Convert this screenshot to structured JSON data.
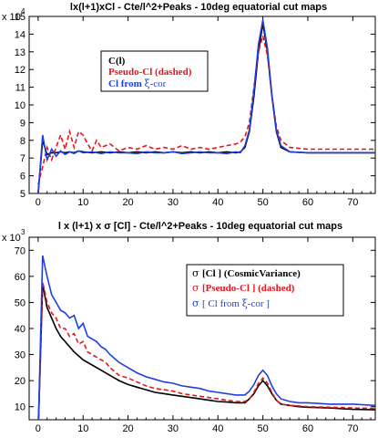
{
  "chart_data": [
    {
      "type": "line",
      "title": "lx(l+1)xCl  - Cte/l^2+Peaks - 10deg equatorial cut maps",
      "y_scale_label": "x 10",
      "y_scale_exp": "4",
      "xlim": [
        -2,
        75
      ],
      "ylim": [
        5,
        15
      ],
      "xticks": [
        0,
        10,
        20,
        30,
        40,
        50,
        60,
        70
      ],
      "yticks": [
        5,
        6,
        7,
        8,
        9,
        10,
        11,
        12,
        13,
        14,
        15
      ],
      "legend_position": "upper-left",
      "series": [
        {
          "name": "C(l)",
          "color": "#000000",
          "dash": "",
          "x": [
            0,
            1,
            2,
            3,
            4,
            5,
            6,
            7,
            8,
            9,
            10,
            12,
            14,
            16,
            18,
            20,
            22,
            24,
            26,
            28,
            30,
            32,
            34,
            36,
            38,
            40,
            42,
            44,
            45,
            46,
            47,
            48,
            49,
            50,
            51,
            52,
            53,
            54,
            56,
            60,
            65,
            70,
            75
          ],
          "y": [
            5.0,
            8.0,
            7.2,
            7.3,
            7.3,
            7.35,
            7.3,
            7.35,
            7.3,
            7.4,
            7.35,
            7.3,
            7.35,
            7.3,
            7.35,
            7.3,
            7.35,
            7.3,
            7.35,
            7.3,
            7.35,
            7.3,
            7.35,
            7.3,
            7.35,
            7.3,
            7.35,
            7.3,
            7.35,
            7.6,
            8.5,
            10.5,
            13.0,
            14.6,
            13.0,
            10.5,
            8.5,
            7.6,
            7.35,
            7.3,
            7.3,
            7.3,
            7.3
          ]
        },
        {
          "name": "Pseudo-Cl (dashed)",
          "color": "#e8141c",
          "dash": "5,3",
          "x": [
            0,
            1,
            2,
            3,
            4,
            5,
            6,
            7,
            8,
            9,
            10,
            11,
            12,
            13,
            14,
            16,
            18,
            20,
            22,
            24,
            26,
            28,
            30,
            32,
            34,
            36,
            38,
            40,
            42,
            44,
            45,
            46,
            47,
            48,
            49,
            50,
            51,
            52,
            53,
            54,
            56,
            60,
            65,
            70,
            75
          ],
          "y": [
            5.5,
            6.5,
            7.6,
            6.9,
            7.6,
            8.3,
            7.5,
            8.5,
            7.6,
            8.5,
            8.3,
            7.8,
            7.4,
            8.0,
            7.6,
            7.8,
            7.4,
            7.6,
            7.5,
            7.7,
            7.5,
            7.6,
            7.5,
            7.7,
            7.5,
            7.6,
            7.5,
            7.6,
            7.7,
            7.8,
            7.9,
            8.2,
            9.0,
            11.0,
            13.0,
            13.9,
            12.8,
            10.5,
            8.8,
            8.0,
            7.6,
            7.5,
            7.5,
            7.5,
            7.5
          ]
        },
        {
          "name": "Cl from ξ-cor",
          "color": "#1f3fe0",
          "dash": "",
          "x": [
            0,
            1,
            2,
            3,
            4,
            5,
            6,
            7,
            8,
            9,
            10,
            12,
            14,
            16,
            18,
            20,
            22,
            24,
            26,
            28,
            30,
            32,
            34,
            36,
            38,
            40,
            42,
            44,
            45,
            46,
            47,
            48,
            49,
            50,
            51,
            52,
            53,
            54,
            56,
            60,
            65,
            70,
            75
          ],
          "y": [
            5.0,
            8.3,
            6.9,
            7.5,
            7.1,
            7.4,
            7.2,
            7.35,
            7.25,
            7.4,
            7.3,
            7.35,
            7.25,
            7.35,
            7.3,
            7.3,
            7.25,
            7.35,
            7.3,
            7.3,
            7.35,
            7.25,
            7.3,
            7.35,
            7.3,
            7.3,
            7.25,
            7.35,
            7.3,
            7.7,
            8.6,
            10.8,
            13.4,
            14.8,
            13.2,
            10.6,
            8.6,
            7.7,
            7.35,
            7.3,
            7.3,
            7.3,
            7.3
          ]
        }
      ]
    },
    {
      "type": "line",
      "title": "l x (l+1) x σ [Cl]  - Cte/l^2+Peaks - 10deg equatorial cut maps",
      "y_scale_label": "x 10",
      "y_scale_exp": "3",
      "xlim": [
        -2,
        75
      ],
      "ylim": [
        5,
        75
      ],
      "xticks": [
        0,
        10,
        20,
        30,
        40,
        50,
        60,
        70
      ],
      "yticks": [
        10,
        20,
        30,
        40,
        50,
        60,
        70
      ],
      "legend_position": "upper-right",
      "series": [
        {
          "name": "σ [Cl ] (CosmicVariance)",
          "color": "#000000",
          "dash": "",
          "x": [
            0,
            1,
            2,
            3,
            4,
            5,
            6,
            7,
            8,
            9,
            10,
            12,
            14,
            16,
            18,
            20,
            22,
            24,
            26,
            28,
            30,
            32,
            34,
            36,
            38,
            40,
            42,
            44,
            46,
            47,
            48,
            49,
            50,
            51,
            52,
            53,
            54,
            56,
            58,
            60,
            65,
            70,
            75
          ],
          "y": [
            0,
            57,
            48,
            44,
            40,
            37,
            35,
            33,
            31,
            29.5,
            28,
            26,
            24,
            22,
            20,
            18.5,
            17.5,
            16.5,
            15.5,
            15,
            14.5,
            14,
            13.5,
            13,
            12.5,
            12,
            11.8,
            11.5,
            11.5,
            13,
            15,
            18,
            20,
            18,
            15,
            12.5,
            11,
            10.5,
            10,
            9.8,
            9.5,
            9,
            8.8
          ]
        },
        {
          "name": "σ [Pseudo-Cl ] (dashed)",
          "color": "#e8141c",
          "dash": "5,3",
          "x": [
            0,
            1,
            2,
            3,
            4,
            5,
            6,
            7,
            8,
            9,
            10,
            11,
            12,
            13,
            14,
            15,
            16,
            18,
            20,
            22,
            24,
            26,
            28,
            30,
            32,
            34,
            36,
            38,
            40,
            42,
            44,
            46,
            47,
            48,
            49,
            50,
            51,
            52,
            53,
            54,
            56,
            58,
            60,
            65,
            70,
            75
          ],
          "y": [
            0,
            58,
            50,
            46,
            44,
            40,
            40,
            37,
            38,
            34,
            35,
            31,
            30,
            29,
            28,
            27,
            25,
            22,
            21,
            19.5,
            18,
            17,
            16.5,
            16,
            15,
            14.5,
            14,
            13.5,
            13,
            12.5,
            12,
            12,
            13,
            15.5,
            19,
            21,
            19,
            15.5,
            12.5,
            11,
            10.5,
            10.3,
            10,
            9.8,
            9.5,
            9.3
          ]
        },
        {
          "name": "σ [ Cl from ξ-cor ]",
          "color": "#1f3fe0",
          "dash": "",
          "x": [
            0,
            1,
            2,
            3,
            4,
            5,
            6,
            7,
            8,
            9,
            10,
            11,
            12,
            13,
            14,
            15,
            16,
            18,
            20,
            22,
            24,
            26,
            28,
            30,
            32,
            34,
            36,
            38,
            40,
            42,
            44,
            46,
            47,
            48,
            49,
            50,
            51,
            52,
            53,
            54,
            56,
            58,
            60,
            65,
            70,
            75
          ],
          "y": [
            0,
            68,
            60,
            53,
            50,
            47,
            46,
            44,
            45,
            40,
            42,
            37,
            36,
            35,
            33,
            32,
            30,
            27,
            25,
            23,
            21.5,
            20.5,
            19.5,
            19,
            18,
            17.5,
            17,
            16,
            15.5,
            15,
            14.5,
            14.5,
            16,
            18.5,
            22,
            24,
            22,
            18,
            15,
            13,
            12,
            11.5,
            11.5,
            11,
            11,
            10.5
          ]
        }
      ]
    }
  ],
  "panels": [
    {
      "legend": [
        {
          "prefix": "",
          "main": "C(l)",
          "greek": "",
          "suffix": "",
          "color": "#000000"
        },
        {
          "prefix": "",
          "main": "Pseudo-Cl (dashed)",
          "greek": "",
          "suffix": "",
          "color": "#e8141c"
        },
        {
          "prefix": "",
          "main": "Cl from ",
          "greek": "ξ",
          "suffix": "-cor",
          "color": "#1f3fe0"
        }
      ]
    },
    {
      "legend": [
        {
          "prefix": "σ ",
          "main": "[Cl ] (CosmicVariance)",
          "greek": "",
          "suffix": "",
          "color": "#000000"
        },
        {
          "prefix": "σ ",
          "main": "[Pseudo-Cl ] (dashed)",
          "greek": "",
          "suffix": "",
          "color": "#e8141c"
        },
        {
          "prefix": "σ ",
          "main": "[ Cl from ",
          "greek": "ξ",
          "suffix": "-cor ]",
          "color": "#1f3fe0"
        }
      ]
    }
  ]
}
